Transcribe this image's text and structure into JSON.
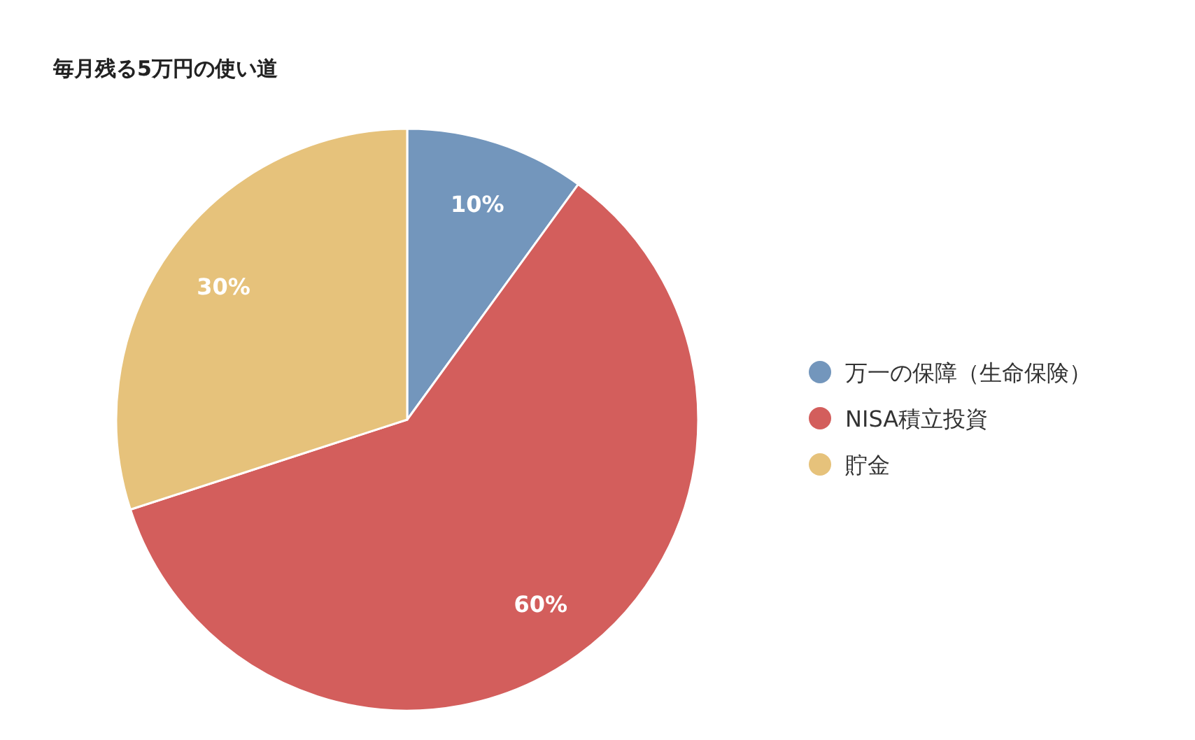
{
  "chart_data": {
    "type": "pie",
    "title": "毎月残る5万円の使い道",
    "categories": [
      "万一の保障（生命保険）",
      "NISA積立投資",
      "貯金"
    ],
    "values": [
      10,
      60,
      30
    ],
    "colors": [
      "#7396bc",
      "#d35e5c",
      "#e6c27b"
    ],
    "value_labels": [
      "10%",
      "60%",
      "30%"
    ],
    "legend": "right"
  }
}
